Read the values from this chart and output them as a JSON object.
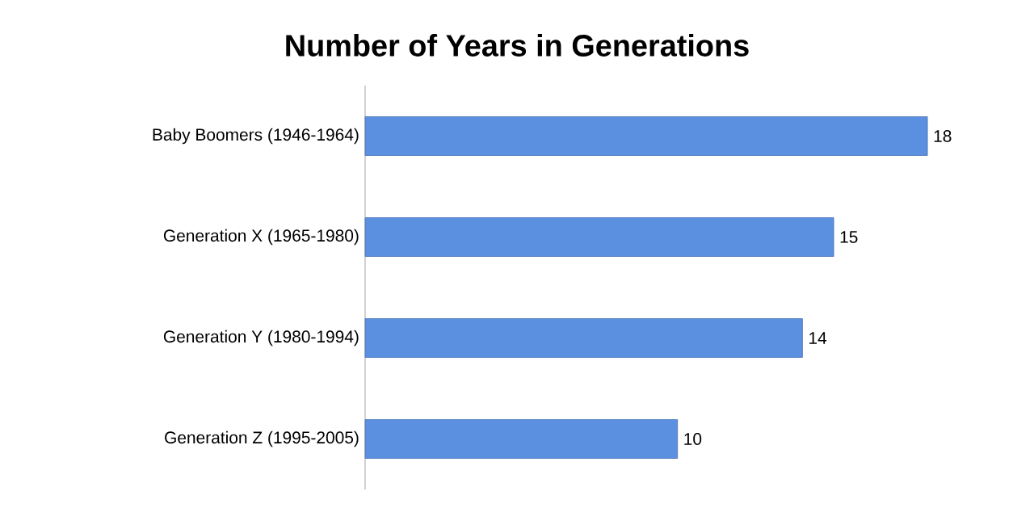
{
  "chart_data": {
    "type": "bar",
    "orientation": "horizontal",
    "title": "Number of Years in Generations",
    "categories": [
      "Baby Boomers (1946-1964)",
      "Generation X (1965-1980)",
      "Generation Y (1980-1994)",
      "Generation Z (1995-2005)"
    ],
    "values": [
      18,
      15,
      14,
      10
    ],
    "color": "#5b8fe0",
    "data_labels": true
  }
}
